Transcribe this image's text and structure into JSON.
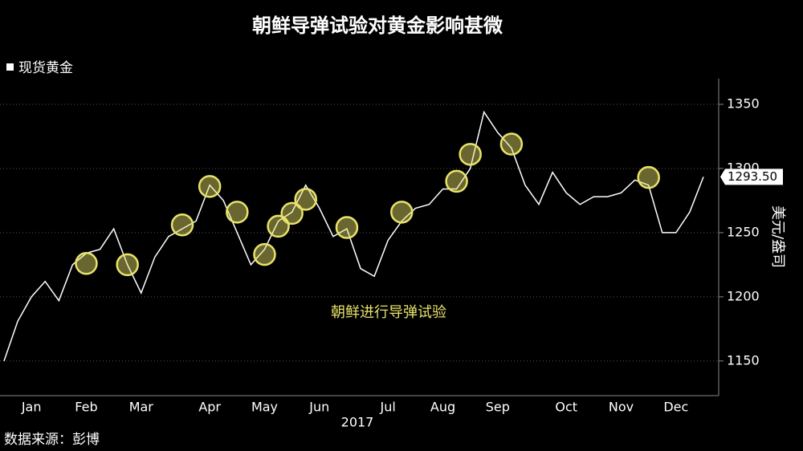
{
  "chart_data": {
    "type": "line",
    "title": "朝鲜导弹试验对黄金影响甚微",
    "categories": [
      null,
      null,
      "Jan",
      null,
      null,
      null,
      "Feb",
      null,
      null,
      null,
      "Mar",
      null,
      null,
      null,
      null,
      "Apr",
      null,
      null,
      null,
      "May",
      null,
      null,
      null,
      "Jun",
      null,
      null,
      null,
      null,
      "Jul",
      null,
      null,
      null,
      "Aug",
      null,
      null,
      null,
      "Sep",
      null,
      null,
      null,
      null,
      "Oct",
      null,
      null,
      null,
      "Nov",
      null,
      null,
      null,
      "Dec",
      null,
      null
    ],
    "xlabel": "2017",
    "ylabel": "美元/盎司",
    "source": "数据来源：彭博",
    "series": [
      {
        "name": "现货黄金",
        "color": "#ffffff",
        "values": [
          1150,
          1181,
          1200,
          1212,
          1197,
          1225,
          1234,
          1237,
          1253,
          1225,
          1203,
          1231,
          1247,
          1253,
          1259,
          1287,
          1275,
          1250,
          1225,
          1237,
          1259,
          1266,
          1287,
          1269,
          1247,
          1253,
          1222,
          1216,
          1244,
          1259,
          1269,
          1272,
          1284,
          1284,
          1300,
          1344,
          1328,
          1316,
          1287,
          1272,
          1297,
          1281,
          1272,
          1278,
          1278,
          1281,
          1291,
          1287,
          1250,
          1250,
          1266,
          1293.5
        ],
        "value_labels": [
          null,
          null,
          null,
          null,
          null,
          null,
          null,
          null,
          null,
          null,
          null,
          null,
          null,
          null,
          null,
          null,
          null,
          null,
          null,
          null,
          null,
          null,
          null,
          null,
          null,
          null,
          null,
          null,
          null,
          null,
          null,
          null,
          null,
          null,
          null,
          null,
          null,
          null,
          null,
          null,
          null,
          null,
          null,
          null,
          null,
          null,
          null,
          null,
          null,
          null,
          null,
          "1293.50"
        ]
      },
      {
        "name": "朝鲜进行导弹试验",
        "color": "#e8e36a",
        "marker": "circle",
        "values": [
          null,
          null,
          null,
          null,
          null,
          null,
          1226,
          null,
          null,
          1225,
          null,
          null,
          null,
          1256,
          null,
          1286,
          null,
          1266,
          null,
          1233,
          1255,
          1265,
          1276,
          null,
          null,
          1254,
          null,
          null,
          null,
          1266,
          null,
          null,
          null,
          1290,
          1311,
          null,
          null,
          1319,
          null,
          null,
          null,
          null,
          null,
          null,
          null,
          null,
          null,
          1293,
          null,
          null,
          null,
          null
        ]
      }
    ],
    "ylim": [
      1123,
      1370
    ],
    "yticks": [
      1150,
      1200,
      1250,
      1300,
      1350
    ],
    "grid": true
  }
}
